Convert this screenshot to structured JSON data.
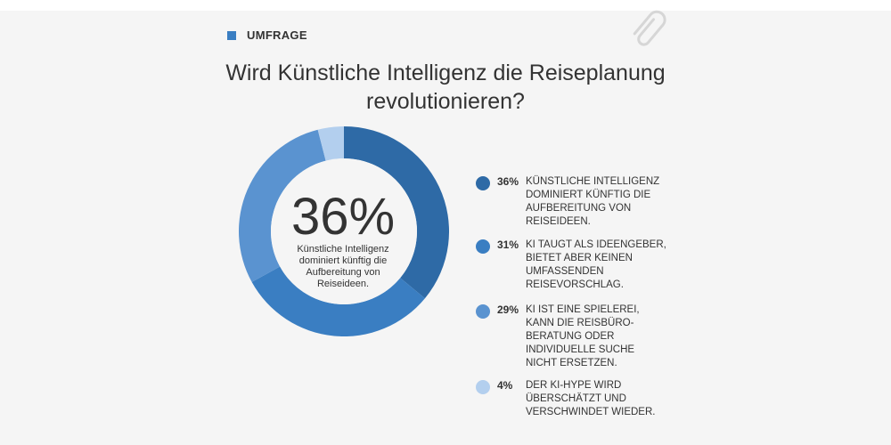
{
  "colors": {
    "badge": "#3a7ec2",
    "slice_1": "#2e6aa6",
    "slice_2": "#3a7ec2",
    "slice_3": "#5a93d0",
    "slice_4": "#b3cfee",
    "text": "#333333",
    "background": "#f5f5f5"
  },
  "header": {
    "badge_label": "UMFRAGE",
    "attachment_icon": "paperclip-icon"
  },
  "chart_data": {
    "type": "pie",
    "style": "donut",
    "title": "Wird Künstliche Intelligenz die Reiseplanung revolutionieren?",
    "center": {
      "value": "36%",
      "description": "Künstliche Intelligenz dominiert künftig die Aufbereitung von Reiseideen."
    },
    "slices": [
      {
        "value": 36,
        "label": "36%",
        "text": "Künstliche Intelligenz dominiert künftig die Aufbereitung von Reiseideen."
      },
      {
        "value": 31,
        "label": "31%",
        "text": "KI taugt als Ideengeber, bietet aber keinen umfassenden Reisevorschlag."
      },
      {
        "value": 29,
        "label": "29%",
        "text": "KI ist eine Spielerei, kann die Reisbüro-Beratung oder individuelle Suche nicht ersetzen."
      },
      {
        "value": 4,
        "label": "4%",
        "text": "Der KI-Hype wird überschätzt und verschwindet wieder."
      }
    ],
    "legend_position": "right"
  }
}
